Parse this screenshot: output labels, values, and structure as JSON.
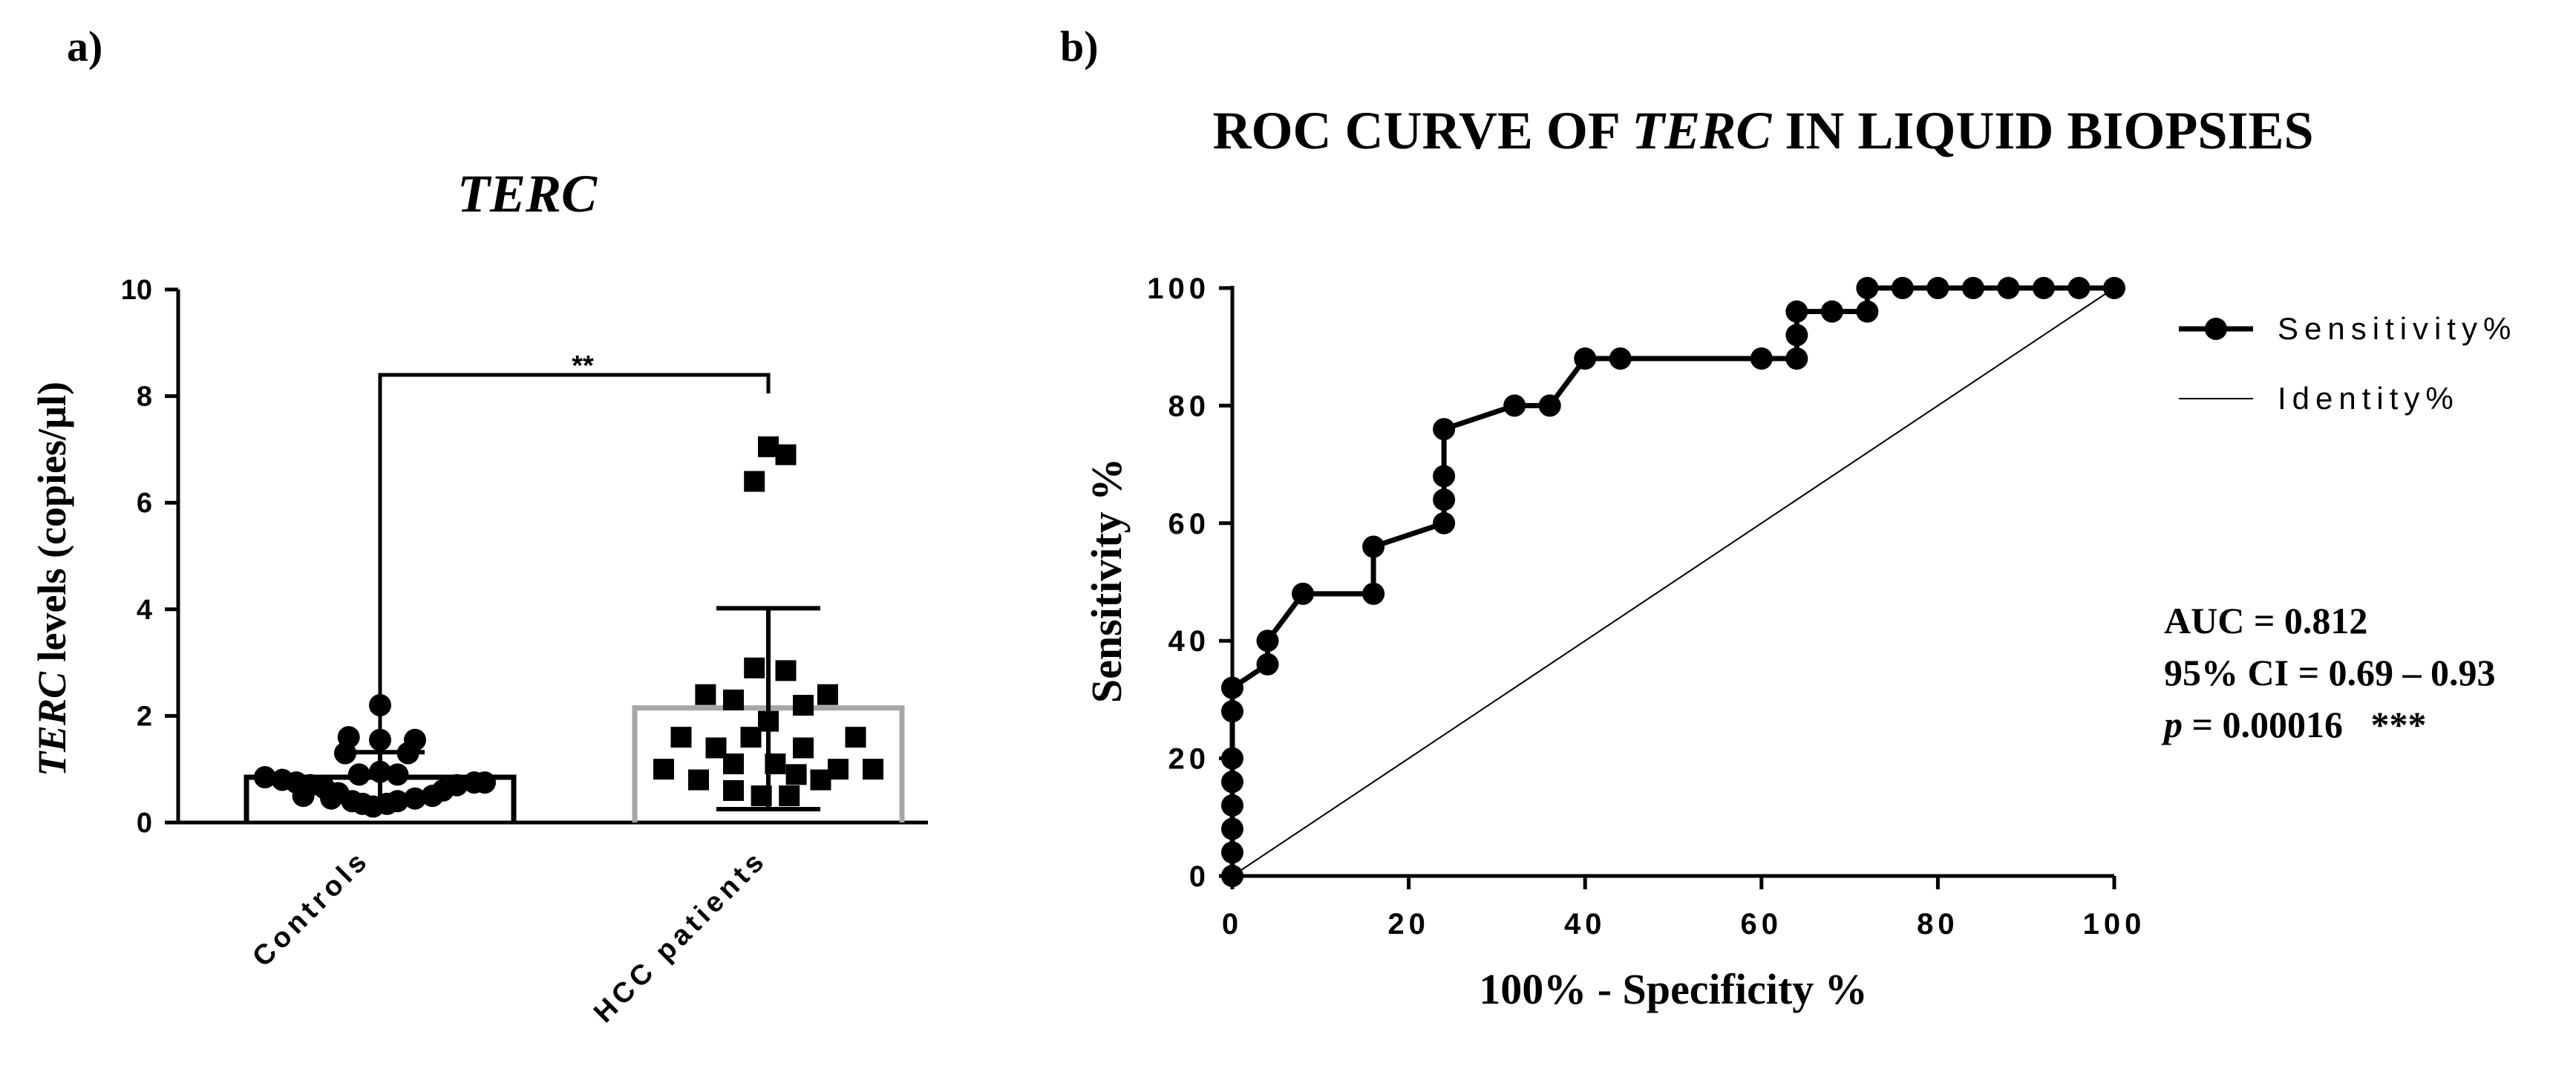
{
  "panel_a": {
    "label": "a)",
    "chart_data": {
      "type": "bar",
      "title": "TERC",
      "ylabel_italic": "TERC",
      "ylabel_rest": " levels (copies/µl)",
      "ylim": [
        0,
        10
      ],
      "yticks": [
        "0",
        "2",
        "4",
        "6",
        "8",
        "10"
      ],
      "categories": [
        "Controls",
        "HCC patients"
      ],
      "means": [
        0.85,
        2.15
      ],
      "sd_upper": [
        1.32,
        4.02
      ],
      "sd_lower": [
        0.4,
        0.25
      ],
      "significance": "**",
      "series": [
        {
          "name": "Controls",
          "marker": "circle",
          "points": [
            [
              -0.33,
              0.85
            ],
            [
              -0.28,
              0.8
            ],
            [
              -0.24,
              0.75
            ],
            [
              -0.2,
              0.7
            ],
            [
              -0.16,
              0.65
            ],
            [
              -0.22,
              0.5
            ],
            [
              -0.14,
              0.45
            ],
            [
              -0.12,
              0.55
            ],
            [
              -0.08,
              0.4
            ],
            [
              -0.05,
              0.35
            ],
            [
              -0.02,
              0.3
            ],
            [
              0.02,
              0.35
            ],
            [
              0.05,
              0.4
            ],
            [
              0.1,
              0.45
            ],
            [
              0.15,
              0.5
            ],
            [
              0.18,
              0.6
            ],
            [
              0.22,
              0.7
            ],
            [
              0.27,
              0.75
            ],
            [
              0.3,
              0.75
            ],
            [
              -0.06,
              0.9
            ],
            [
              0.0,
              0.95
            ],
            [
              0.05,
              0.9
            ],
            [
              -0.1,
              1.3
            ],
            [
              0.08,
              1.3
            ],
            [
              -0.09,
              1.6
            ],
            [
              0.0,
              1.55
            ],
            [
              0.1,
              1.55
            ],
            [
              0.0,
              2.2
            ]
          ]
        },
        {
          "name": "HCC patients",
          "marker": "square",
          "points": [
            [
              -0.3,
              1.0
            ],
            [
              -0.25,
              1.6
            ],
            [
              -0.2,
              0.8
            ],
            [
              -0.15,
              1.4
            ],
            [
              -0.1,
              0.6
            ],
            [
              -0.05,
              1.6
            ],
            [
              -0.02,
              0.5
            ],
            [
              0.02,
              1.1
            ],
            [
              0.06,
              0.5
            ],
            [
              0.1,
              1.4
            ],
            [
              0.15,
              0.8
            ],
            [
              0.2,
              1.0
            ],
            [
              0.25,
              1.6
            ],
            [
              0.3,
              1.0
            ],
            [
              -0.18,
              2.4
            ],
            [
              -0.1,
              2.3
            ],
            [
              -0.04,
              2.9
            ],
            [
              0.0,
              1.9
            ],
            [
              0.05,
              2.85
            ],
            [
              0.1,
              2.2
            ],
            [
              0.17,
              2.4
            ],
            [
              -0.1,
              1.1
            ],
            [
              0.08,
              0.9
            ],
            [
              -0.04,
              6.4
            ],
            [
              0.0,
              7.05
            ],
            [
              0.05,
              6.9
            ]
          ]
        }
      ]
    }
  },
  "panel_b": {
    "label": "b)",
    "chart_data": {
      "type": "line",
      "title_part1": "ROC CURVE OF ",
      "title_italic": "TERC",
      "title_part2": " IN LIQUID BIOPSIES",
      "xlabel": "100% - Specificity %",
      "ylabel": "Sensitivity %",
      "xlim": [
        0,
        100
      ],
      "ylim": [
        0,
        100
      ],
      "xticks": [
        "0",
        "20",
        "40",
        "60",
        "80",
        "100"
      ],
      "yticks": [
        "0",
        "20",
        "40",
        "60",
        "80",
        "100"
      ],
      "series": [
        {
          "name": "Sensitivity%",
          "x": [
            0,
            0,
            0,
            0,
            0,
            0,
            0,
            0,
            0,
            4,
            4,
            8,
            16,
            16,
            24,
            24,
            24,
            24,
            32,
            36,
            40,
            44,
            60,
            64,
            64,
            64,
            68,
            72,
            72,
            76,
            80,
            84,
            88,
            92,
            96,
            100
          ],
          "y": [
            0,
            4,
            8,
            12,
            16,
            20,
            28,
            32,
            32,
            36,
            40,
            48,
            48,
            56,
            60,
            64,
            68,
            76,
            80,
            80,
            88,
            88,
            88,
            88,
            92,
            96,
            96,
            96,
            100,
            100,
            100,
            100,
            100,
            100,
            100,
            100
          ]
        },
        {
          "name": "Identity%",
          "x": [
            0,
            100
          ],
          "y": [
            0,
            100
          ]
        }
      ],
      "legend_position": "top-right",
      "annotations": {
        "auc": "AUC = 0.812",
        "ci": "95% CI = 0.69 – 0.93",
        "p_italic": "p",
        "p_rest": " = 0.00016   ***"
      }
    }
  }
}
